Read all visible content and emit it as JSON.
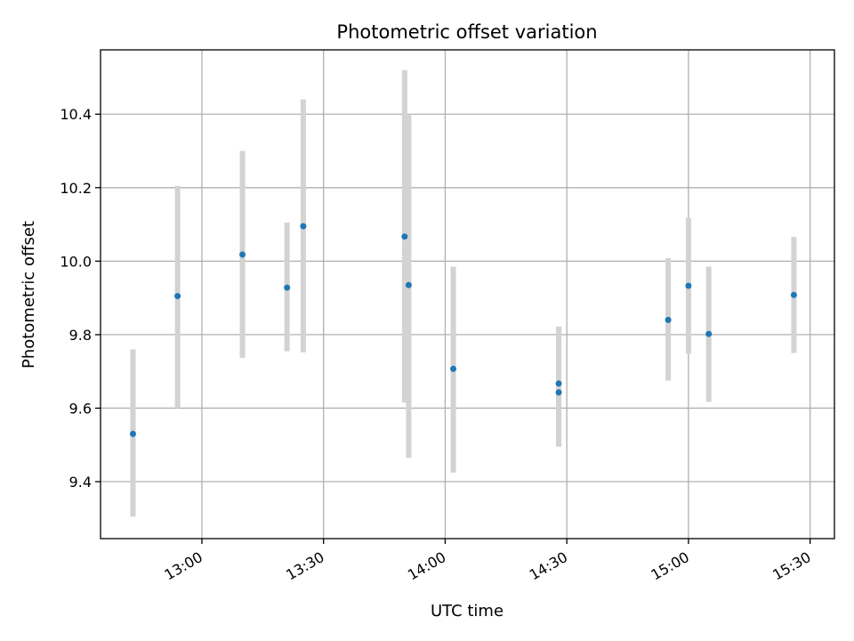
{
  "chart_data": {
    "type": "scatter",
    "title": "Photometric offset variation",
    "xlabel": "UTC time",
    "ylabel": "Photometric offset",
    "x_ticks": [
      "13:00",
      "13:30",
      "14:00",
      "14:30",
      "15:00",
      "15:30"
    ],
    "y_ticks": [
      "9.4",
      "9.6",
      "9.8",
      "10.0",
      "10.2",
      "10.4"
    ],
    "xlim": [
      "12:35",
      "15:36"
    ],
    "ylim": [
      9.245,
      10.575
    ],
    "grid": true,
    "error_bars": true,
    "colors": {
      "point": "#1f77b4",
      "errorbar": "#d3d3d3",
      "grid": "#b0b0b0"
    },
    "points": [
      {
        "x": "12:43",
        "y": 9.53,
        "ylow": 9.305,
        "yhigh": 9.76
      },
      {
        "x": "12:54",
        "y": 9.905,
        "ylow": 9.6,
        "yhigh": 10.205
      },
      {
        "x": "13:10",
        "y": 10.018,
        "ylow": 9.737,
        "yhigh": 10.3
      },
      {
        "x": "13:21",
        "y": 9.928,
        "ylow": 9.755,
        "yhigh": 10.105
      },
      {
        "x": "13:25",
        "y": 10.095,
        "ylow": 9.752,
        "yhigh": 10.44
      },
      {
        "x": "13:50",
        "y": 10.067,
        "ylow": 9.615,
        "yhigh": 10.52
      },
      {
        "x": "13:51",
        "y": 9.935,
        "ylow": 9.465,
        "yhigh": 10.4
      },
      {
        "x": "14:02",
        "y": 9.707,
        "ylow": 9.425,
        "yhigh": 9.985
      },
      {
        "x": "14:28",
        "y": 9.643,
        "ylow": 9.495,
        "yhigh": 9.822
      },
      {
        "x": "14:28",
        "y": 9.667,
        "ylow": 9.515,
        "yhigh": 9.822
      },
      {
        "x": "14:55",
        "y": 9.84,
        "ylow": 9.675,
        "yhigh": 10.008
      },
      {
        "x": "15:00",
        "y": 9.933,
        "ylow": 9.748,
        "yhigh": 10.118
      },
      {
        "x": "15:05",
        "y": 9.802,
        "ylow": 9.617,
        "yhigh": 9.985
      },
      {
        "x": "15:26",
        "y": 9.908,
        "ylow": 9.75,
        "yhigh": 10.066
      }
    ]
  }
}
